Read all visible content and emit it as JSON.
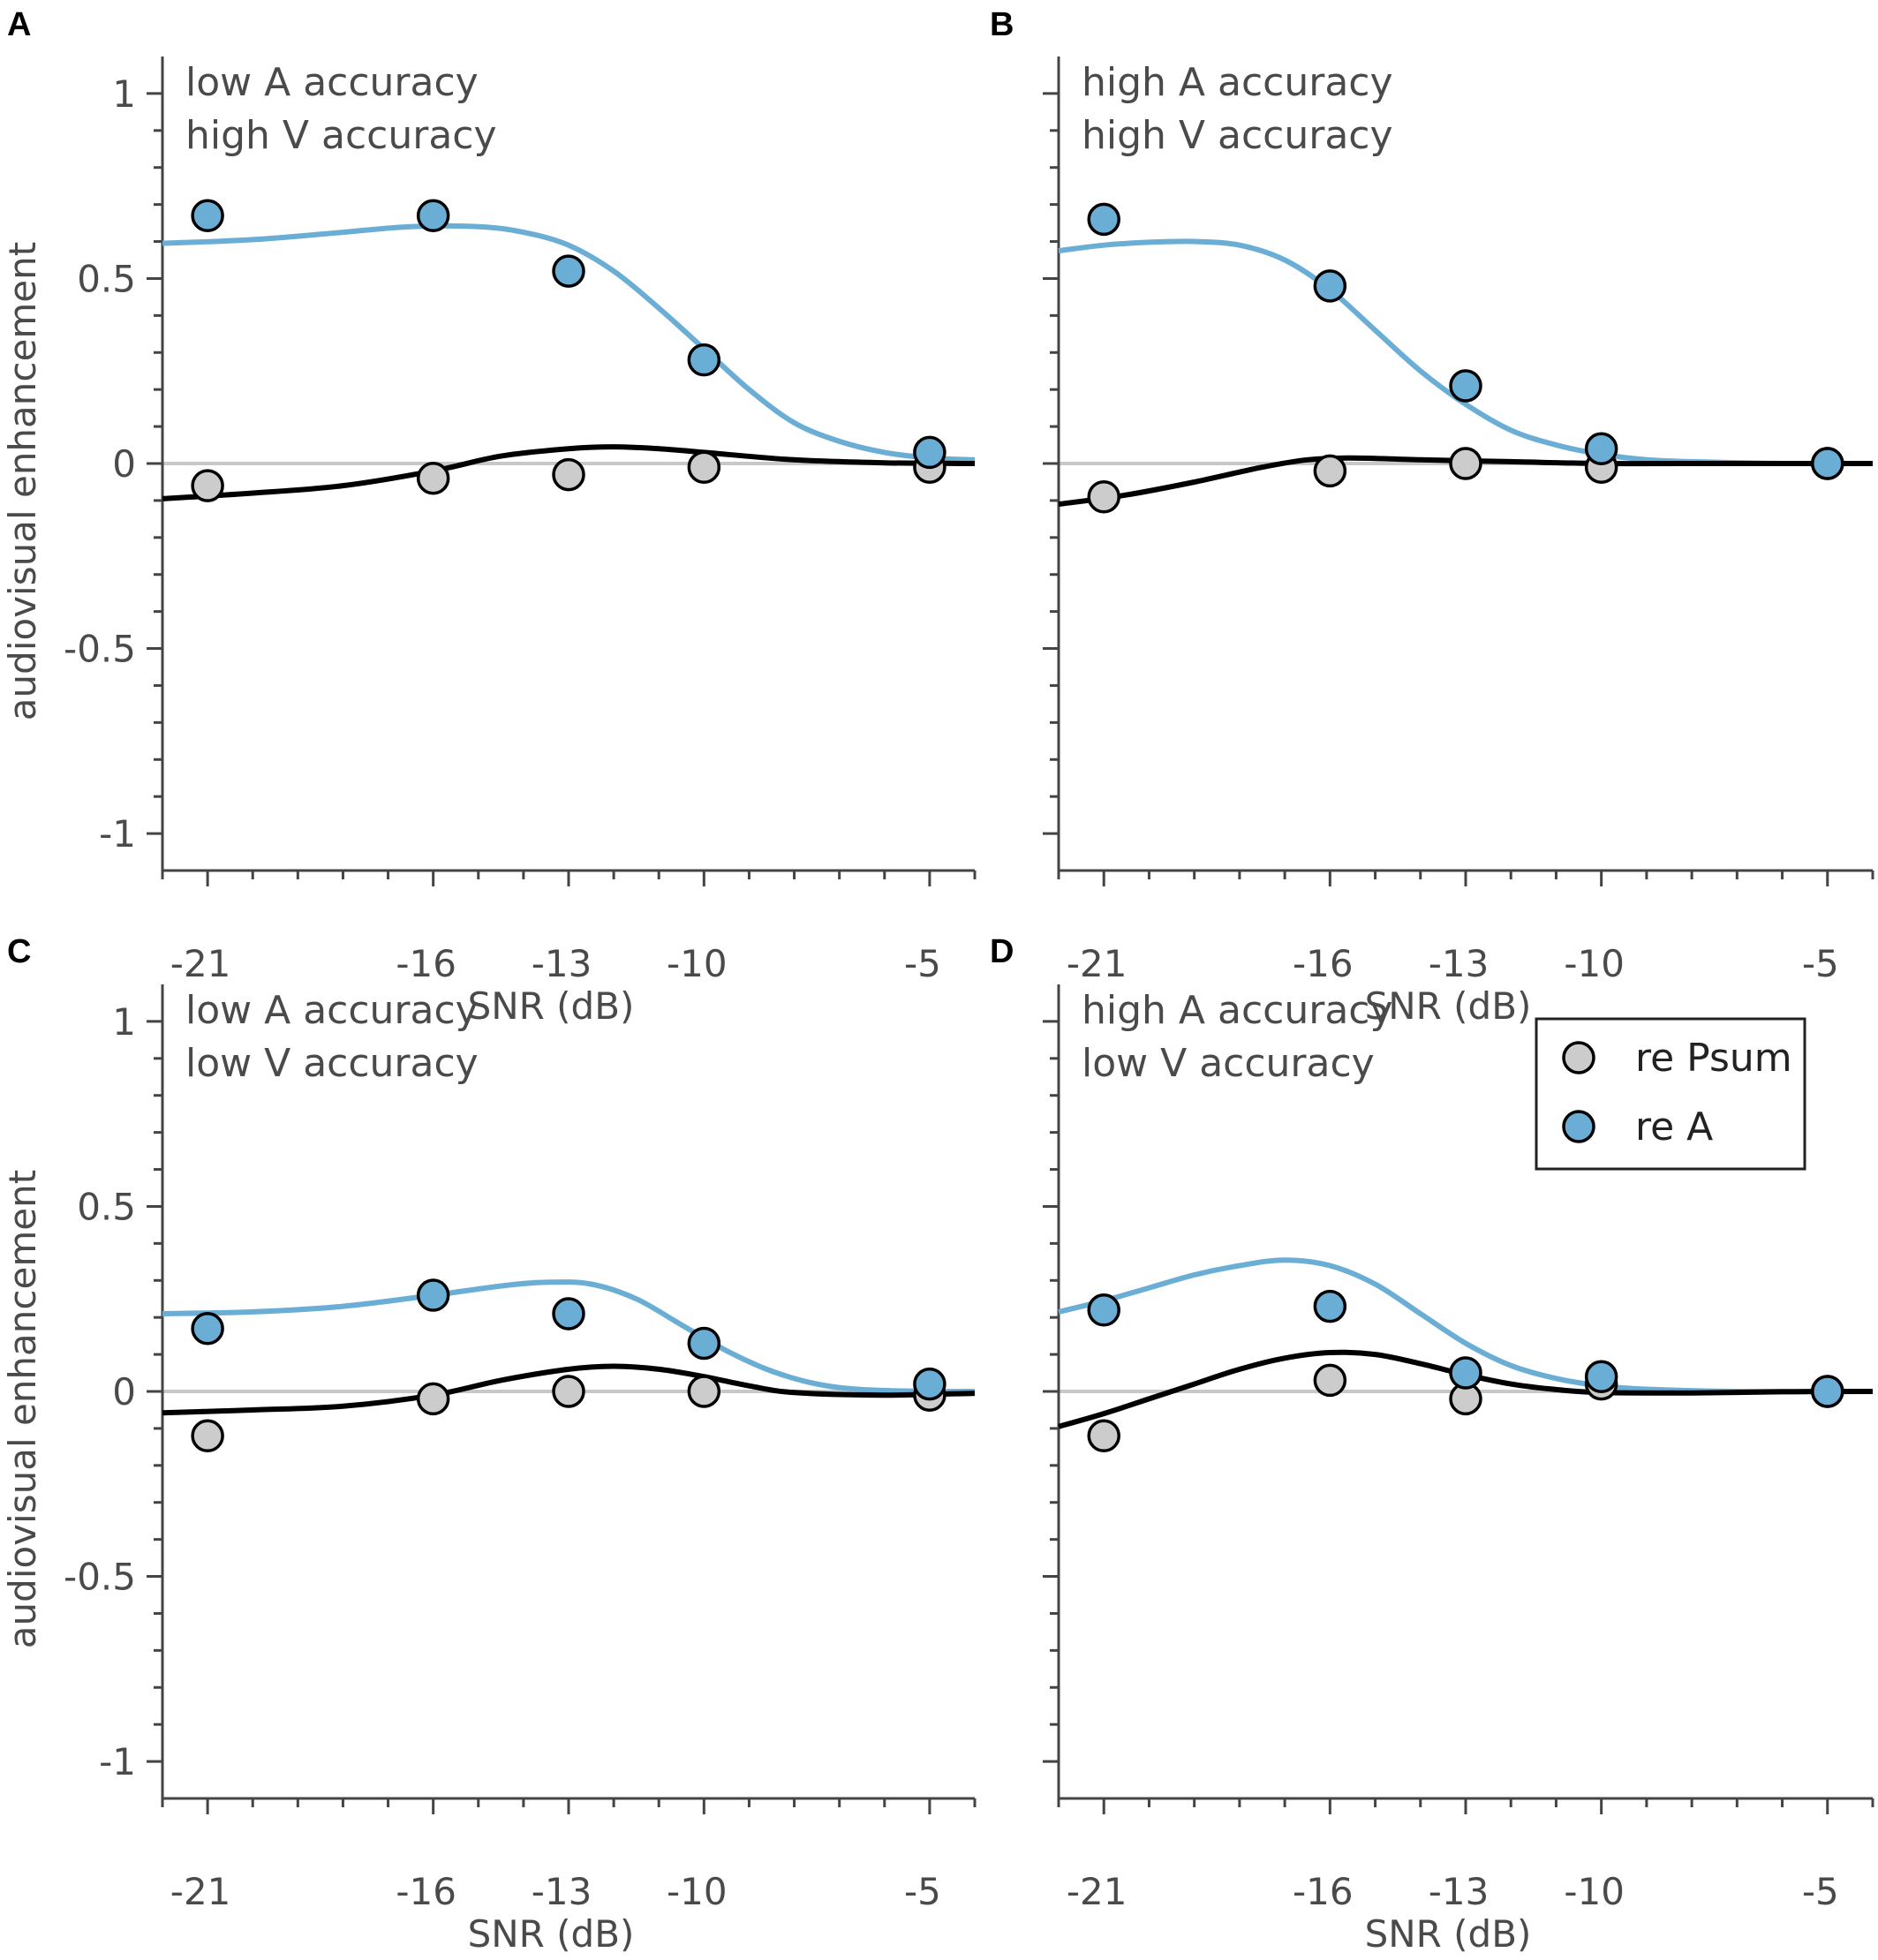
{
  "chart_data": [
    {
      "type": "scatter",
      "panel": "A",
      "annotation": [
        "low A accuracy",
        "high V accuracy"
      ],
      "ylabel": "audiovisual enhancement",
      "xlabel": "SNR (dB)",
      "xlim": [
        -22,
        -4
      ],
      "ylim": [
        -1.1,
        1.1
      ],
      "xticks": [
        -21,
        -16,
        -13,
        -10,
        -5
      ],
      "yticks": [
        1,
        0.5,
        0,
        -0.5,
        -1
      ],
      "ytick_labels": [
        "1",
        "0.5",
        "0",
        "-0.5",
        "-1"
      ],
      "xtick_labels": [
        "-21",
        "-16",
        "-13",
        "-10",
        "-5"
      ],
      "series": [
        {
          "name": "re Psum",
          "x": [
            -21,
            -16,
            -13,
            -10,
            -5
          ],
          "y": [
            -0.06,
            -0.04,
            -0.03,
            -0.01,
            -0.01
          ],
          "fit": [
            [
              -22,
              -0.095
            ],
            [
              -20,
              -0.08
            ],
            [
              -18,
              -0.06
            ],
            [
              -16,
              -0.02
            ],
            [
              -14.5,
              0.02
            ],
            [
              -13,
              0.04
            ],
            [
              -12,
              0.045
            ],
            [
              -11,
              0.04
            ],
            [
              -10,
              0.03
            ],
            [
              -8,
              0.01
            ],
            [
              -6,
              0.002
            ],
            [
              -4,
              0.0
            ]
          ]
        },
        {
          "name": "re A",
          "x": [
            -21,
            -16,
            -13,
            -10,
            -5
          ],
          "y": [
            0.67,
            0.67,
            0.52,
            0.28,
            0.03
          ],
          "fit": [
            [
              -22,
              0.595
            ],
            [
              -20,
              0.605
            ],
            [
              -18,
              0.625
            ],
            [
              -16.5,
              0.64
            ],
            [
              -15,
              0.64
            ],
            [
              -14,
              0.625
            ],
            [
              -13,
              0.59
            ],
            [
              -12,
              0.52
            ],
            [
              -11,
              0.42
            ],
            [
              -10,
              0.31
            ],
            [
              -9,
              0.2
            ],
            [
              -8,
              0.11
            ],
            [
              -7,
              0.06
            ],
            [
              -6,
              0.03
            ],
            [
              -5,
              0.015
            ],
            [
              -4,
              0.01
            ]
          ]
        }
      ]
    },
    {
      "type": "scatter",
      "panel": "B",
      "annotation": [
        "high A accuracy",
        "high V accuracy"
      ],
      "ylabel": "",
      "xlabel": "SNR (dB)",
      "xlim": [
        -22,
        -4
      ],
      "ylim": [
        -1.1,
        1.1
      ],
      "xticks": [
        -21,
        -16,
        -13,
        -10,
        -5
      ],
      "yticks": [
        1,
        0.5,
        0,
        -0.5,
        -1
      ],
      "ytick_labels": [],
      "xtick_labels": [
        "-21",
        "-16",
        "-13",
        "-10",
        "-5"
      ],
      "series": [
        {
          "name": "re Psum",
          "x": [
            -21,
            -16,
            -13,
            -10,
            -5
          ],
          "y": [
            -0.09,
            -0.02,
            0.0,
            -0.01,
            0.0
          ],
          "fit": [
            [
              -22,
              -0.11
            ],
            [
              -20.5,
              -0.085
            ],
            [
              -19,
              -0.05
            ],
            [
              -17.5,
              -0.01
            ],
            [
              -16.5,
              0.01
            ],
            [
              -15.5,
              0.015
            ],
            [
              -14,
              0.01
            ],
            [
              -12,
              0.005
            ],
            [
              -10,
              0.0
            ],
            [
              -8,
              0.0
            ],
            [
              -4,
              0.0
            ]
          ]
        },
        {
          "name": "re A",
          "x": [
            -21,
            -16,
            -13,
            -10,
            -5
          ],
          "y": [
            0.66,
            0.48,
            0.21,
            0.04,
            0.0
          ],
          "fit": [
            [
              -22,
              0.575
            ],
            [
              -21,
              0.59
            ],
            [
              -20,
              0.598
            ],
            [
              -19,
              0.6
            ],
            [
              -18,
              0.59
            ],
            [
              -17,
              0.55
            ],
            [
              -16,
              0.47
            ],
            [
              -15,
              0.36
            ],
            [
              -14,
              0.25
            ],
            [
              -13,
              0.16
            ],
            [
              -12,
              0.09
            ],
            [
              -11,
              0.05
            ],
            [
              -10,
              0.025
            ],
            [
              -9,
              0.01
            ],
            [
              -8,
              0.005
            ],
            [
              -6,
              0.0
            ],
            [
              -4,
              0.0
            ]
          ]
        }
      ]
    },
    {
      "type": "scatter",
      "panel": "C",
      "annotation": [
        "low A accuracy",
        "low V accuracy"
      ],
      "ylabel": "audiovisual enhancement",
      "xlabel": "SNR (dB)",
      "xlim": [
        -22,
        -4
      ],
      "ylim": [
        -1.1,
        1.1
      ],
      "xticks": [
        -21,
        -16,
        -13,
        -10,
        -5
      ],
      "yticks": [
        1,
        0.5,
        0,
        -0.5,
        -1
      ],
      "ytick_labels": [
        "1",
        "0.5",
        "0",
        "-0.5",
        "-1"
      ],
      "xtick_labels": [
        "-21",
        "-16",
        "-13",
        "-10",
        "-5"
      ],
      "series": [
        {
          "name": "re Psum",
          "x": [
            -21,
            -16,
            -13,
            -10,
            -5
          ],
          "y": [
            -0.12,
            -0.02,
            0.0,
            0.0,
            -0.01
          ],
          "fit": [
            [
              -22,
              -0.058
            ],
            [
              -20,
              -0.05
            ],
            [
              -18,
              -0.04
            ],
            [
              -16,
              -0.01
            ],
            [
              -14.5,
              0.03
            ],
            [
              -13,
              0.06
            ],
            [
              -12,
              0.068
            ],
            [
              -11,
              0.06
            ],
            [
              -10,
              0.04
            ],
            [
              -9,
              0.015
            ],
            [
              -8,
              -0.003
            ],
            [
              -6,
              -0.01
            ],
            [
              -4,
              -0.005
            ]
          ]
        },
        {
          "name": "re A",
          "x": [
            -21,
            -16,
            -13,
            -10,
            -5
          ],
          "y": [
            0.17,
            0.26,
            0.21,
            0.13,
            0.02
          ],
          "fit": [
            [
              -22,
              0.21
            ],
            [
              -20,
              0.215
            ],
            [
              -18,
              0.23
            ],
            [
              -16,
              0.26
            ],
            [
              -14.5,
              0.285
            ],
            [
              -13.5,
              0.295
            ],
            [
              -12.5,
              0.29
            ],
            [
              -11.5,
              0.25
            ],
            [
              -10.5,
              0.18
            ],
            [
              -9.5,
              0.11
            ],
            [
              -8.5,
              0.055
            ],
            [
              -7.5,
              0.02
            ],
            [
              -6.5,
              0.005
            ],
            [
              -5,
              0.0
            ],
            [
              -4,
              0.0
            ]
          ]
        }
      ]
    },
    {
      "type": "scatter",
      "panel": "D",
      "annotation": [
        "high A accuracy",
        "low V accuracy"
      ],
      "ylabel": "",
      "xlabel": "SNR (dB)",
      "xlim": [
        -22,
        -4
      ],
      "ylim": [
        -1.1,
        1.1
      ],
      "xticks": [
        -21,
        -16,
        -13,
        -10,
        -5
      ],
      "yticks": [
        1,
        0.5,
        0,
        -0.5,
        -1
      ],
      "ytick_labels": [],
      "xtick_labels": [
        "-21",
        "-16",
        "-13",
        "-10",
        "-5"
      ],
      "series": [
        {
          "name": "re Psum",
          "x": [
            -21,
            -16,
            -13,
            -10,
            -5
          ],
          "y": [
            -0.12,
            0.03,
            -0.02,
            0.02,
            0.0
          ],
          "fit": [
            [
              -22,
              -0.095
            ],
            [
              -21,
              -0.06
            ],
            [
              -20,
              -0.02
            ],
            [
              -19,
              0.02
            ],
            [
              -18,
              0.06
            ],
            [
              -17,
              0.09
            ],
            [
              -16,
              0.105
            ],
            [
              -15,
              0.1
            ],
            [
              -14,
              0.075
            ],
            [
              -13,
              0.045
            ],
            [
              -12,
              0.02
            ],
            [
              -11,
              0.005
            ],
            [
              -10,
              -0.003
            ],
            [
              -8,
              -0.004
            ],
            [
              -6,
              -0.001
            ],
            [
              -4,
              0.0
            ]
          ]
        },
        {
          "name": "re A",
          "x": [
            -21,
            -16,
            -13,
            -10,
            -5
          ],
          "y": [
            0.22,
            0.23,
            0.05,
            0.04,
            0.0
          ],
          "fit": [
            [
              -22,
              0.215
            ],
            [
              -21,
              0.245
            ],
            [
              -20,
              0.28
            ],
            [
              -19,
              0.315
            ],
            [
              -18,
              0.34
            ],
            [
              -17,
              0.355
            ],
            [
              -16,
              0.34
            ],
            [
              -15,
              0.29
            ],
            [
              -14,
              0.21
            ],
            [
              -13,
              0.13
            ],
            [
              -12,
              0.07
            ],
            [
              -11,
              0.035
            ],
            [
              -10,
              0.015
            ],
            [
              -9,
              0.006
            ],
            [
              -7,
              0.0
            ],
            [
              -4,
              0.0
            ]
          ]
        }
      ]
    }
  ],
  "legend": {
    "items": [
      {
        "label": "re Psum",
        "color": "#cccccc"
      },
      {
        "label": "re A",
        "color": "#6aaed6"
      }
    ],
    "placement": "panel D, top-right"
  },
  "colors": {
    "psum_fill": "#cccccc",
    "a_fill": "#6aaed6",
    "psum_line": "#000000",
    "a_line": "#6aaed6",
    "zero_line": "#c8c8c8",
    "axis": "#444444"
  }
}
